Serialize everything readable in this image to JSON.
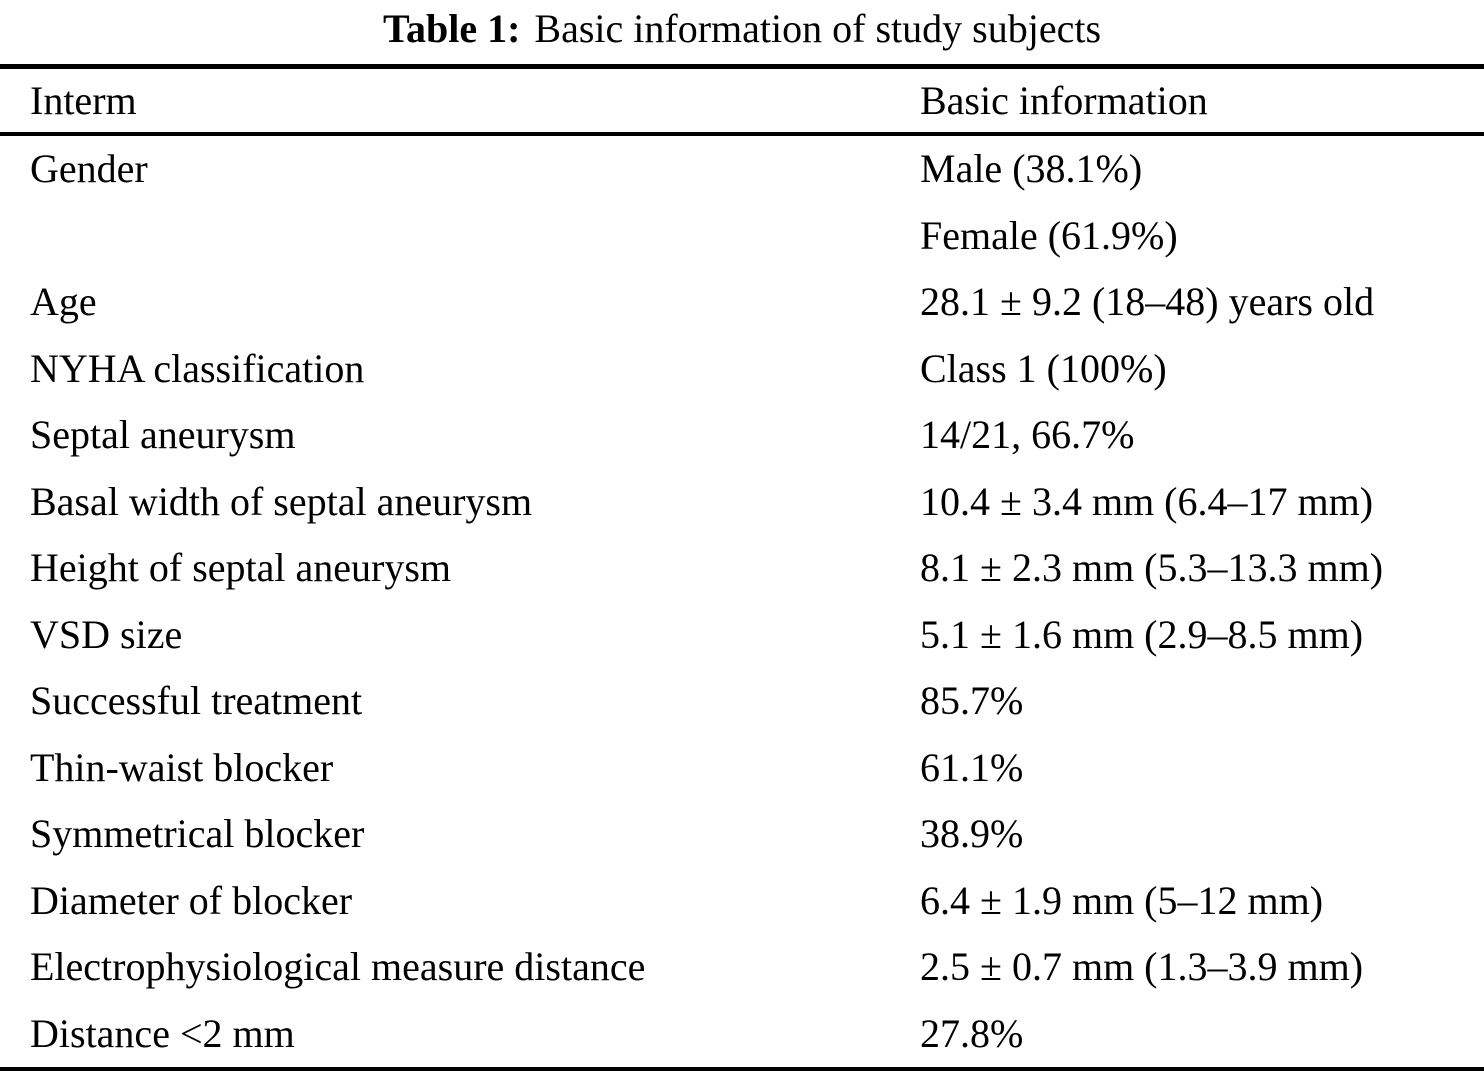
{
  "caption": {
    "label": "Table 1:",
    "text": "Basic information of study subjects"
  },
  "table": {
    "columns": [
      "Interm",
      "Basic information"
    ],
    "rows": [
      {
        "item": "Gender",
        "value": "Male (38.1%)"
      },
      {
        "item": "",
        "value": "Female (61.9%)"
      },
      {
        "item": "Age",
        "value": "28.1 ± 9.2 (18–48) years old"
      },
      {
        "item": "NYHA classification",
        "value": "Class 1 (100%)"
      },
      {
        "item": "Septal aneurysm",
        "value": "14/21, 66.7%"
      },
      {
        "item": "Basal width of septal aneurysm",
        "value": "10.4 ± 3.4 mm (6.4–17 mm)"
      },
      {
        "item": "Height of septal aneurysm",
        "value": "8.1 ± 2.3 mm (5.3–13.3 mm)"
      },
      {
        "item": "VSD size",
        "value": "5.1 ± 1.6 mm (2.9–8.5 mm)"
      },
      {
        "item": "Successful treatment",
        "value": "85.7%"
      },
      {
        "item": "Thin-waist blocker",
        "value": "61.1%"
      },
      {
        "item": "Symmetrical blocker",
        "value": "38.9%"
      },
      {
        "item": "Diameter of blocker",
        "value": "6.4 ± 1.9 mm (5–12 mm)"
      },
      {
        "item": "Electrophysiological measure distance",
        "value": "2.5 ± 0.7 mm (1.3–3.9 mm)"
      },
      {
        "item": "Distance <2 mm",
        "value": "27.8%"
      }
    ]
  },
  "colors": {
    "text": "#000000",
    "background": "#ffffff",
    "rule": "#000000"
  }
}
